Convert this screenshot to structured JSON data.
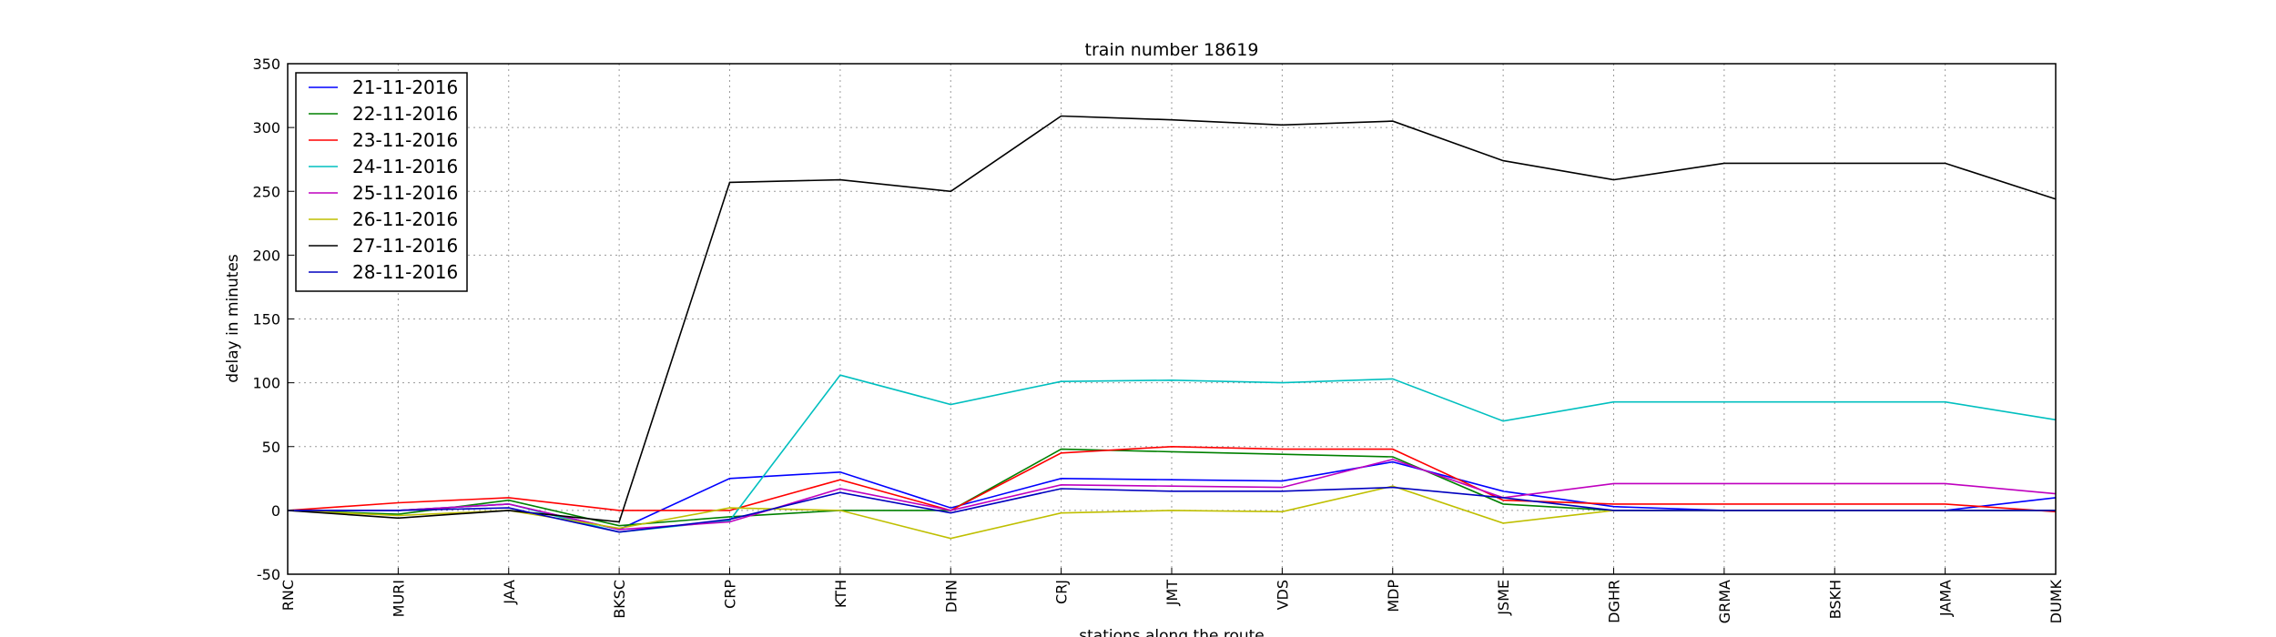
{
  "chart_data": {
    "type": "line",
    "title": "train number 18619",
    "xlabel": "stations along the route",
    "ylabel": "delay in minutes",
    "categories": [
      "RNC",
      "MURI",
      "JAA",
      "BKSC",
      "CRP",
      "KTH",
      "DHN",
      "CRJ",
      "JMT",
      "VDS",
      "MDP",
      "JSME",
      "DGHR",
      "GRMA",
      "BSKH",
      "JAMA",
      "DUMK"
    ],
    "ylim": [
      -50,
      350
    ],
    "yticks": [
      -50,
      0,
      50,
      100,
      150,
      200,
      250,
      300,
      350
    ],
    "grid": true,
    "legend_position": "upper-left",
    "series": [
      {
        "name": "21-11-2016",
        "color": "#0000ff",
        "values": [
          0,
          0,
          5,
          -15,
          25,
          30,
          2,
          25,
          24,
          23,
          38,
          15,
          3,
          0,
          0,
          0,
          10
        ]
      },
      {
        "name": "22-11-2016",
        "color": "#008000",
        "values": [
          0,
          -3,
          8,
          -12,
          -5,
          0,
          0,
          48,
          46,
          44,
          42,
          5,
          0,
          0,
          0,
          0,
          0
        ]
      },
      {
        "name": "23-11-2016",
        "color": "#ff0000",
        "values": [
          0,
          6,
          10,
          0,
          0,
          24,
          0,
          45,
          50,
          48,
          48,
          8,
          5,
          5,
          5,
          5,
          -1
        ]
      },
      {
        "name": "24-11-2016",
        "color": "#00bfbf",
        "values": [
          0,
          0,
          5,
          -17,
          -8,
          106,
          83,
          101,
          102,
          100,
          103,
          70,
          85,
          85,
          85,
          85,
          71
        ]
      },
      {
        "name": "25-11-2016",
        "color": "#bf00bf",
        "values": [
          0,
          0,
          5,
          -15,
          -9,
          17,
          0,
          20,
          19,
          18,
          40,
          10,
          21,
          21,
          21,
          21,
          13
        ]
      },
      {
        "name": "26-11-2016",
        "color": "#bfbf00",
        "values": [
          0,
          -4,
          0,
          -14,
          2,
          0,
          -22,
          -2,
          0,
          -1,
          19,
          -10,
          0,
          0,
          0,
          0,
          0
        ]
      },
      {
        "name": "27-11-2016",
        "color": "#000000",
        "values": [
          0,
          -6,
          0,
          -9,
          257,
          259,
          250,
          309,
          306,
          302,
          305,
          274,
          259,
          272,
          272,
          272,
          244
        ]
      },
      {
        "name": "28-11-2016",
        "color": "#0000bf",
        "values": [
          0,
          0,
          2,
          -17,
          -7,
          14,
          -2,
          17,
          15,
          15,
          18,
          10,
          0,
          0,
          0,
          0,
          0
        ]
      }
    ]
  }
}
